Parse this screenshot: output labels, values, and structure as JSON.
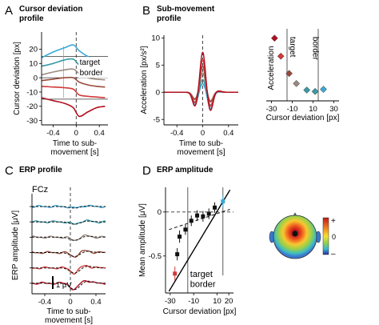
{
  "panels": {
    "a": {
      "letter": "A",
      "title_line1": "Cursor deviation",
      "title_line2": "profile"
    },
    "b": {
      "letter": "B",
      "title_line1": "Sub-movement",
      "title_line2": "profile"
    },
    "c": {
      "letter": "C",
      "title": "ERP profile",
      "channel": "FCz",
      "scalebar": "1 μV"
    },
    "d": {
      "letter": "D",
      "title": "ERP amplitude"
    }
  },
  "topomap": {
    "cbar_plus": "+",
    "cbar_zero": "0",
    "cbar_minus": "–"
  },
  "colors": {
    "dark_red": "#b01020",
    "red": "#d23a3a",
    "brown": "#9a4a3a",
    "gray": "#9a8a80",
    "teal": "#3a9aa8",
    "cyan": "#3aa8d8"
  },
  "chart_data": [
    {
      "id": "cursor-deviation-profile",
      "type": "line",
      "xlabel": "Time to sub-\nmovement [s]",
      "ylabel": "Cursor deviation [px]",
      "xlim": [
        -0.6,
        0.55
      ],
      "ylim": [
        -33,
        32
      ],
      "xticks": [
        -0.4,
        0,
        0.4
      ],
      "xtick_labels": [
        "-0.4",
        "0",
        "0.4"
      ],
      "yticks": [
        -30,
        -20,
        -10,
        0,
        10,
        20
      ],
      "ytick_labels": [
        "-30",
        "-20",
        "-10",
        "0",
        "10",
        "20"
      ],
      "annotation_line1": "target",
      "annotation_line2": "border",
      "hlines": [
        15,
        0,
        -15
      ],
      "vline": 0,
      "series": [
        {
          "color": "#3aa8d8",
          "points": [
            [
              -0.6,
              14
            ],
            [
              -0.4,
              18
            ],
            [
              -0.2,
              21
            ],
            [
              -0.05,
              23
            ],
            [
              0.05,
              19
            ],
            [
              0.2,
              15
            ],
            [
              0.35,
              13
            ],
            [
              0.5,
              12
            ]
          ]
        },
        {
          "color": "#3a9aa8",
          "points": [
            [
              -0.6,
              8
            ],
            [
              -0.4,
              10
            ],
            [
              -0.2,
              12.5
            ],
            [
              -0.05,
              13
            ],
            [
              0.05,
              9
            ],
            [
              0.2,
              6
            ],
            [
              0.35,
              4.5
            ],
            [
              0.5,
              3.5
            ]
          ]
        },
        {
          "color": "#9a8a80",
          "points": [
            [
              -0.6,
              2
            ],
            [
              -0.4,
              4
            ],
            [
              -0.2,
              5.5
            ],
            [
              -0.05,
              6
            ],
            [
              0.05,
              3
            ],
            [
              0.2,
              0
            ],
            [
              0.35,
              -1
            ],
            [
              0.5,
              -1.5
            ]
          ]
        },
        {
          "color": "#9a4a3a",
          "points": [
            [
              -0.6,
              -2
            ],
            [
              -0.4,
              -1
            ],
            [
              -0.2,
              0
            ],
            [
              -0.05,
              0
            ],
            [
              0.05,
              -3
            ],
            [
              0.2,
              -5
            ],
            [
              0.35,
              -6
            ],
            [
              0.5,
              -6.5
            ]
          ]
        },
        {
          "color": "#d23a3a",
          "points": [
            [
              -0.6,
              -6
            ],
            [
              -0.4,
              -6.5
            ],
            [
              -0.2,
              -7
            ],
            [
              -0.05,
              -8
            ],
            [
              0.05,
              -12
            ],
            [
              0.2,
              -13
            ],
            [
              0.35,
              -13.5
            ],
            [
              0.5,
              -14
            ]
          ]
        },
        {
          "color": "#b01020",
          "points": [
            [
              -0.6,
              -14
            ],
            [
              -0.4,
              -16
            ],
            [
              -0.2,
              -18
            ],
            [
              -0.05,
              -21
            ],
            [
              0.05,
              -27
            ],
            [
              0.2,
              -24
            ],
            [
              0.35,
              -21
            ],
            [
              0.5,
              -20
            ]
          ]
        }
      ]
    },
    {
      "id": "sub-movement-profile",
      "type": "line",
      "xlabel": "Time to sub-\nmovement [s]",
      "ylabel": "Acceleration [px/s²]",
      "xlim": [
        -0.6,
        0.55
      ],
      "ylim": [
        -6,
        10.5
      ],
      "xticks": [
        -0.4,
        0,
        0.4
      ],
      "xtick_labels": [
        "-0.4",
        "0",
        "0.4"
      ],
      "yticks": [
        -5,
        0,
        5,
        10
      ],
      "ytick_labels": [
        "-5",
        "0",
        "5",
        "10"
      ],
      "vline": 0,
      "series": [
        {
          "color": "#3aa8d8",
          "peak": 1.6,
          "trough": -3.0
        },
        {
          "color": "#3a9aa8",
          "peak": 2.4,
          "trough": -2.4
        },
        {
          "color": "#9a8a80",
          "peak": 3.6,
          "trough": -1.6
        },
        {
          "color": "#9a4a3a",
          "peak": 4.8,
          "trough": -1.8
        },
        {
          "color": "#d23a3a",
          "peak": 6.0,
          "trough": -2.6
        },
        {
          "color": "#b01020",
          "peak": 7.4,
          "trough": -3.4
        }
      ]
    },
    {
      "id": "acceleration-vs-deviation",
      "type": "scatter",
      "xlabel": "Cursor deviation [px]",
      "ylabel": "Acceleration",
      "xlim": [
        -35,
        35
      ],
      "ylim": [
        0,
        10
      ],
      "xticks": [
        -30,
        -10,
        10,
        30
      ],
      "xtick_labels": [
        "-30",
        "-10",
        "10",
        "30"
      ],
      "annotation_line1": "target",
      "annotation_line2": "border",
      "vlines": [
        -15,
        15
      ],
      "points": [
        {
          "x": -27,
          "y": 8.7,
          "color": "#b01020"
        },
        {
          "x": -21,
          "y": 6.2,
          "color": "#d23a3a"
        },
        {
          "x": -13,
          "y": 3.8,
          "color": "#9a4a3a"
        },
        {
          "x": -6,
          "y": 2.4,
          "color": "#9a8a80"
        },
        {
          "x": 4,
          "y": 1.5,
          "color": "#3a9aa8"
        },
        {
          "x": 12,
          "y": 1.3,
          "color": "#3a9aa8"
        },
        {
          "x": 20,
          "y": 1.6,
          "color": "#3aa8d8"
        }
      ]
    },
    {
      "id": "erp-profile",
      "type": "line",
      "xlabel": "Time to sub-\nmovement [s]",
      "ylabel": "ERP amplitude [μV]",
      "xlim": [
        -0.6,
        0.55
      ],
      "xticks": [
        -0.4,
        0,
        0.4
      ],
      "xtick_labels": [
        "-0.4",
        "0",
        "0.4"
      ],
      "vline": 0,
      "traces": [
        {
          "color": "#3aa8d8",
          "dip": 0.4
        },
        {
          "color": "#3a9aa8",
          "dip": 0.6
        },
        {
          "color": "#9a8a80",
          "dip": 0.8
        },
        {
          "color": "#9a4a3a",
          "dip": 1.0
        },
        {
          "color": "#d23a3a",
          "dip": 1.3
        },
        {
          "color": "#b01020",
          "dip": 1.6
        }
      ]
    },
    {
      "id": "erp-amplitude",
      "type": "scatter",
      "xlabel": "Cursor deviation [px]",
      "ylabel": "Mean amplitude [μV]",
      "xlim": [
        -34,
        24
      ],
      "ylim": [
        -0.92,
        0.28
      ],
      "xticks": [
        -30,
        -10,
        10,
        20
      ],
      "xtick_labels": [
        "-30",
        "-10",
        "10",
        "20"
      ],
      "yticks": [
        -0.5,
        0
      ],
      "ytick_labels": [
        "-0.5",
        "0"
      ],
      "annotation_line1": "target",
      "annotation_line2": "border",
      "hline": 0,
      "vlines": [
        -15,
        15
      ],
      "points": [
        {
          "x": 15,
          "y": 0.12,
          "err": 0.07,
          "color": "#3aa8d8"
        },
        {
          "x": 8,
          "y": 0.05,
          "err": 0.06,
          "color": "#111111"
        },
        {
          "x": 3,
          "y": -0.02,
          "err": 0.06,
          "color": "#111111"
        },
        {
          "x": -2,
          "y": -0.05,
          "err": 0.06,
          "color": "#111111"
        },
        {
          "x": -7,
          "y": -0.04,
          "err": 0.06,
          "color": "#111111"
        },
        {
          "x": -12,
          "y": -0.1,
          "err": 0.06,
          "color": "#111111"
        },
        {
          "x": -17,
          "y": -0.2,
          "err": 0.06,
          "color": "#111111"
        },
        {
          "x": -22,
          "y": -0.28,
          "err": 0.07,
          "color": "#111111"
        },
        {
          "x": -24,
          "y": -0.48,
          "err": 0.07,
          "color": "#111111"
        },
        {
          "x": -26,
          "y": -0.7,
          "err": 0.08,
          "color": "#d23a3a"
        }
      ],
      "fit_lines": [
        {
          "x": [
            -31,
            21
          ],
          "y": [
            -0.9,
            0.25
          ]
        },
        {
          "x": [
            -31,
            21
          ],
          "y": [
            -0.2,
            0.03
          ]
        }
      ]
    }
  ]
}
